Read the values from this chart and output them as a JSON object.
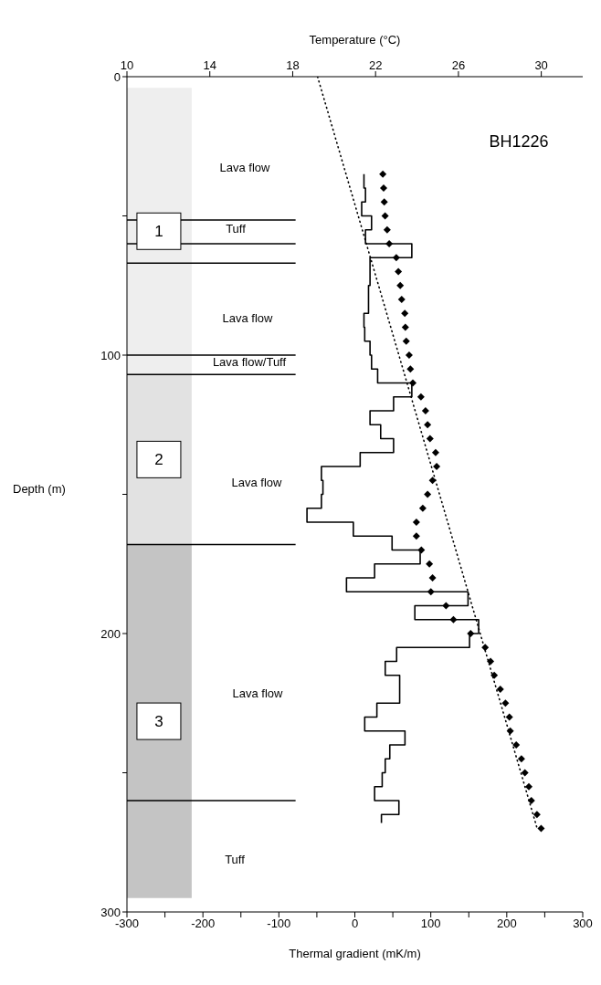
{
  "chart_data": {
    "type": "line",
    "xlabel": "Thermal gradient (mK/m)",
    "x2label": "Temperature (°C)",
    "ylabel": "Depth (m)",
    "xlim": [
      -300,
      300
    ],
    "xticks": [
      -300,
      {
        "value": -250,
        "label": null
      },
      -200,
      {
        "value": -150,
        "label": null
      },
      -100,
      {
        "value": -50,
        "label": null
      },
      0,
      {
        "value": 50,
        "label": null
      },
      100,
      {
        "value": 150,
        "label": null
      },
      200,
      {
        "value": 250,
        "label": null
      },
      300
    ],
    "x2lim": [
      10,
      32
    ],
    "x2ticks": [
      10,
      14,
      18,
      22,
      26,
      30
    ],
    "ylim": [
      300,
      0
    ],
    "yticks": [
      0,
      {
        "value": 50,
        "label": null
      },
      100,
      {
        "value": 150,
        "label": null
      },
      200,
      {
        "value": 250,
        "label": null
      },
      300
    ],
    "bands": [
      {
        "axis": "y",
        "from": 4,
        "to": 107,
        "label": "1",
        "color": "#eeeeee"
      },
      {
        "axis": "y",
        "from": 107,
        "to": 168,
        "label": "2",
        "color": "#e2e2e2"
      },
      {
        "axis": "y",
        "from": 168,
        "to": 295,
        "label": "3",
        "color": "#c4c4c4"
      }
    ],
    "ref_lines": [
      {
        "axis": "y",
        "value": 51.5,
        "color": "#000000"
      },
      {
        "axis": "y",
        "value": 60,
        "color": "#000000"
      },
      {
        "axis": "y",
        "value": 67,
        "color": "#000000"
      },
      {
        "axis": "y",
        "value": 100,
        "color": "#000000"
      },
      {
        "axis": "y",
        "value": 107,
        "color": "#000000"
      },
      {
        "axis": "y",
        "value": 168,
        "color": "#000000"
      },
      {
        "axis": "y",
        "value": 260,
        "color": "#000000"
      }
    ],
    "annotations": [
      "BH1226",
      "Lava flow",
      "Tuff",
      "Lava flow",
      "Lava flow/Tuff",
      "Lava flow",
      "Lava flow",
      "Tuff"
    ],
    "series": [
      {
        "type": "step",
        "color": "#000000",
        "line_style": "solid",
        "x": [
          12,
          14,
          9,
          22,
          14,
          75,
          20,
          20,
          18,
          18,
          12,
          13,
          20,
          22,
          30,
          75,
          51,
          20,
          34,
          51,
          7,
          -44,
          -42,
          -44,
          -63,
          -2,
          49,
          86,
          26,
          -11,
          149,
          79,
          163,
          151,
          55,
          40,
          59,
          59,
          29,
          13,
          66,
          46,
          40,
          36,
          26,
          58,
          35,
          35
        ],
        "values": [
          35,
          40,
          45,
          50,
          55,
          60,
          65,
          70,
          75,
          80,
          85,
          90,
          95,
          100,
          105,
          110,
          115,
          120,
          125,
          130,
          135,
          140,
          145,
          150,
          155,
          160,
          165,
          170,
          175,
          180,
          185,
          190,
          195,
          200,
          205,
          210,
          215,
          220,
          225,
          230,
          235,
          240,
          245,
          250,
          255,
          260,
          265,
          268
        ]
      },
      {
        "type": "scatter",
        "axis": "x2",
        "color": "#000000",
        "marker": "diamond",
        "x": [
          22.35,
          22.39,
          22.42,
          22.46,
          22.56,
          22.66,
          23.0,
          23.1,
          23.19,
          23.26,
          23.41,
          23.44,
          23.48,
          23.62,
          23.68,
          23.8,
          24.19,
          24.41,
          24.51,
          24.63,
          24.9,
          24.95,
          24.75,
          24.51,
          24.28,
          23.97,
          23.97,
          24.21,
          24.6,
          24.75,
          24.67,
          25.4,
          25.76,
          26.59,
          27.29,
          27.55,
          27.73,
          28.02,
          28.27,
          28.46,
          28.5,
          28.79,
          29.04,
          29.21,
          29.4,
          29.52,
          29.79,
          29.99
        ],
        "values": [
          35,
          40,
          45,
          50,
          55,
          60,
          65,
          70,
          75,
          80,
          85,
          90,
          95,
          100,
          105,
          110,
          115,
          120,
          125,
          130,
          135,
          140,
          145,
          150,
          155,
          160,
          165,
          170,
          175,
          180,
          185,
          190,
          195,
          200,
          205,
          210,
          215,
          220,
          225,
          230,
          235,
          240,
          245,
          250,
          255,
          260,
          265,
          270
        ]
      },
      {
        "type": "line",
        "axis": "x2",
        "color": "#000000",
        "line_style": "dotted",
        "x": [
          19.2,
          29.8
        ],
        "values": [
          0,
          270
        ]
      }
    ]
  }
}
